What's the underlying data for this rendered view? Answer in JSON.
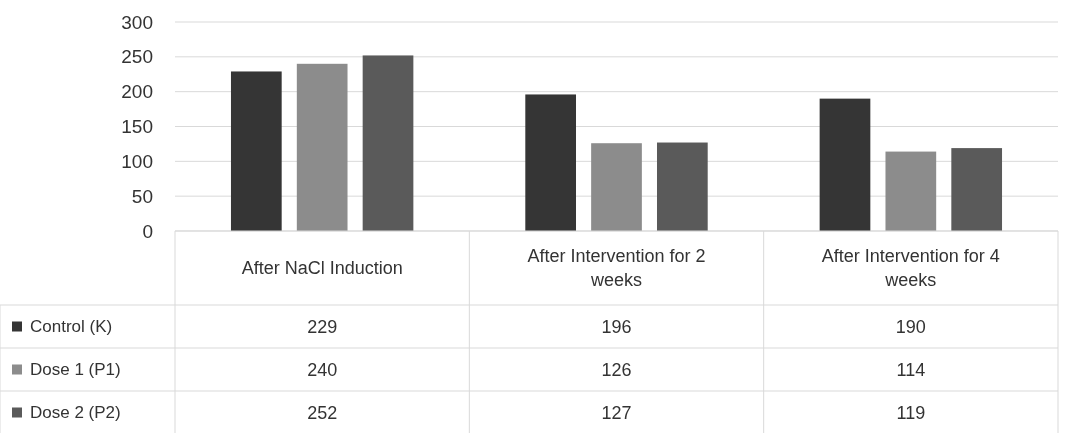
{
  "chart_data": {
    "type": "bar",
    "categories": [
      "After NaCl Induction",
      "After Intervention for 2 weeks",
      "After Intervention for 4 weeks"
    ],
    "series": [
      {
        "name": "Control (K)",
        "color": "#353535",
        "values": [
          229,
          196,
          190
        ]
      },
      {
        "name": "Dose 1 (P1)",
        "color": "#8c8c8c",
        "values": [
          240,
          126,
          114
        ]
      },
      {
        "name": "Dose 2 (P2)",
        "color": "#5a5a5a",
        "values": [
          252,
          127,
          119
        ]
      }
    ],
    "ylim": [
      0,
      300
    ],
    "yticks": [
      0,
      50,
      100,
      150,
      200,
      250,
      300
    ],
    "grid": "y",
    "legend": "bottom left",
    "data_labels": true
  }
}
